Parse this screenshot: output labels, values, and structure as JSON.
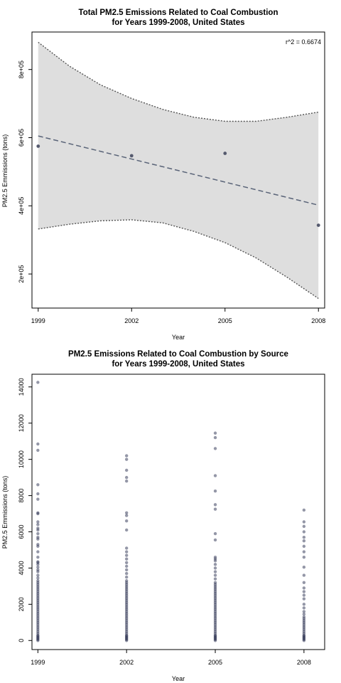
{
  "colors": {
    "band_fill": "#dedede",
    "band_edge": "#555555",
    "fit_line": "#5a6478",
    "point": "#555a6e",
    "scatter_point": "#2a2f4f"
  },
  "chart_data": [
    {
      "type": "scatter",
      "title": "Total PM2.5 Emissions Related to Coal Combustion",
      "subtitle": "for Years 1999-2008, United States",
      "xlabel": "Year",
      "ylabel": "PM2.5 Emmissions (tons)",
      "annotation": "r^2 = 0.6674",
      "x_ticks": [
        "1999",
        "2002",
        "2005",
        "2008"
      ],
      "y_ticks": [
        "2e+05",
        "4e+05",
        "6e+05",
        "8e+05"
      ],
      "y_tick_values": [
        200000,
        400000,
        600000,
        800000
      ],
      "xlim": [
        1998.8,
        2008.2
      ],
      "ylim": [
        100000,
        910000
      ],
      "points": [
        {
          "x": 1999,
          "y": 575000
        },
        {
          "x": 2002,
          "y": 547000
        },
        {
          "x": 2005,
          "y": 554000
        },
        {
          "x": 2008,
          "y": 343000
        }
      ],
      "fit": {
        "x": [
          1999,
          2008
        ],
        "y": [
          605000,
          402000
        ]
      },
      "band_upper": [
        {
          "x": 1999,
          "y": 880000
        },
        {
          "x": 2000,
          "y": 810000
        },
        {
          "x": 2001,
          "y": 755000
        },
        {
          "x": 2002,
          "y": 715000
        },
        {
          "x": 2003,
          "y": 683000
        },
        {
          "x": 2004,
          "y": 660000
        },
        {
          "x": 2005,
          "y": 648000
        },
        {
          "x": 2006,
          "y": 648000
        },
        {
          "x": 2007,
          "y": 660000
        },
        {
          "x": 2008,
          "y": 675000
        }
      ],
      "band_lower": [
        {
          "x": 1999,
          "y": 332000
        },
        {
          "x": 2000,
          "y": 346000
        },
        {
          "x": 2001,
          "y": 356000
        },
        {
          "x": 2002,
          "y": 359000
        },
        {
          "x": 2003,
          "y": 350000
        },
        {
          "x": 2004,
          "y": 325000
        },
        {
          "x": 2005,
          "y": 292000
        },
        {
          "x": 2006,
          "y": 247000
        },
        {
          "x": 2007,
          "y": 190000
        },
        {
          "x": 2008,
          "y": 128000
        }
      ]
    },
    {
      "type": "scatter",
      "title": "PM2.5 Emissions Related to Coal Combustion by Source",
      "subtitle": "for Years 1999-2008, United States",
      "xlabel": "Year",
      "ylabel": "PM2.5 Emmissions (tons)",
      "x_ticks": [
        "1999",
        "2002",
        "2005",
        "2008"
      ],
      "y_ticks": [
        "0",
        "2000",
        "4000",
        "6000",
        "8000",
        "10000",
        "12000",
        "14000"
      ],
      "y_tick_values": [
        0,
        2000,
        4000,
        6000,
        8000,
        10000,
        12000,
        14000
      ],
      "xlim": [
        1998.8,
        2008.7
      ],
      "ylim": [
        -500,
        14700
      ],
      "series": [
        {
          "x": 1999,
          "values": [
            14250,
            10850,
            10500,
            8600,
            8100,
            7800,
            7050,
            7000,
            6550,
            6400,
            6200,
            6100,
            5900,
            5700,
            5600,
            5300,
            5200,
            4900,
            4600,
            4350,
            4300,
            4200,
            4050,
            3900,
            3800,
            3600,
            3450,
            3300,
            3200,
            3100,
            3000,
            2900,
            2800,
            2700,
            2600,
            2500,
            2400,
            2300,
            2200,
            2100,
            2000,
            1900,
            1800,
            1700,
            1600,
            1500,
            1400,
            1300,
            1200,
            1100,
            1000,
            900,
            800,
            700,
            600,
            500,
            400,
            300,
            250,
            200,
            150,
            100,
            50,
            0
          ]
        },
        {
          "x": 2002,
          "values": [
            10200,
            10000,
            9400,
            9000,
            8800,
            7050,
            6900,
            6600,
            6100,
            5100,
            4900,
            4700,
            4500,
            4300,
            4100,
            3900,
            3700,
            3500,
            3300,
            3200,
            3100,
            3000,
            2900,
            2800,
            2700,
            2600,
            2500,
            2400,
            2300,
            2200,
            2100,
            2000,
            1900,
            1800,
            1700,
            1600,
            1500,
            1400,
            1300,
            1200,
            1100,
            1000,
            900,
            800,
            700,
            600,
            500,
            400,
            300,
            250,
            200,
            150,
            100,
            50,
            0
          ]
        },
        {
          "x": 2005,
          "values": [
            11450,
            11200,
            10600,
            9100,
            8250,
            7500,
            7250,
            5900,
            5550,
            4600,
            4500,
            4400,
            4200,
            4000,
            3800,
            3600,
            3400,
            3200,
            3100,
            3000,
            2900,
            2800,
            2700,
            2600,
            2500,
            2400,
            2300,
            2200,
            2100,
            2000,
            1900,
            1800,
            1700,
            1600,
            1500,
            1400,
            1300,
            1200,
            1100,
            1000,
            900,
            800,
            700,
            600,
            500,
            400,
            300,
            250,
            200,
            150,
            100,
            50,
            0
          ]
        },
        {
          "x": 2008,
          "values": [
            7200,
            6550,
            6300,
            6000,
            5700,
            5500,
            5200,
            4900,
            4600,
            4050,
            3600,
            3200,
            2900,
            2700,
            2500,
            2300,
            2000,
            1800,
            1600,
            1450,
            1300,
            1200,
            1100,
            1000,
            900,
            800,
            700,
            600,
            500,
            400,
            300,
            250,
            200,
            150,
            100,
            50,
            0
          ]
        }
      ]
    }
  ]
}
